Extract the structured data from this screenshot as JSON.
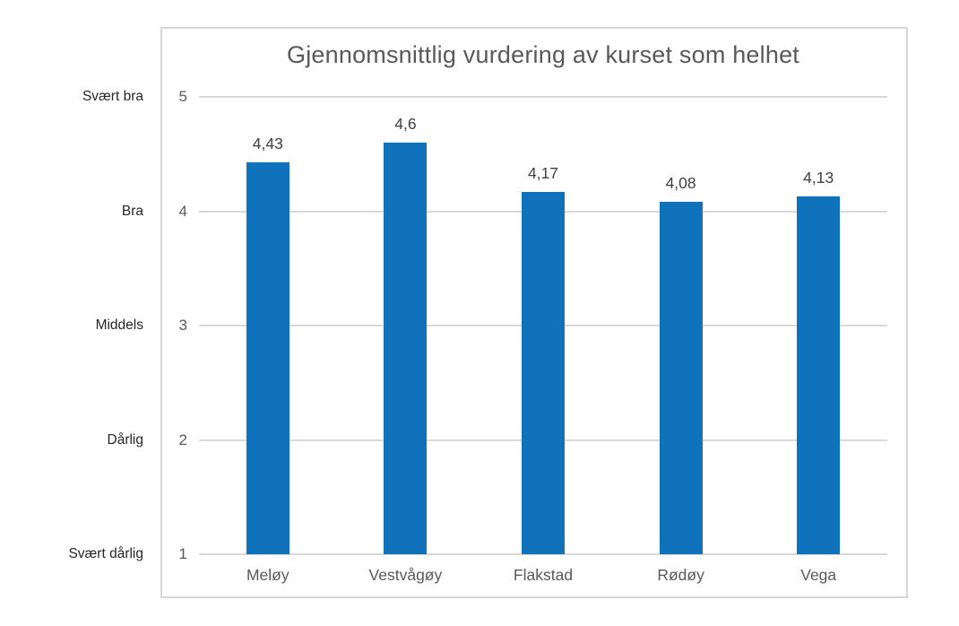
{
  "chart_data": {
    "type": "bar",
    "title": "Gjennomsnittlig vurdering av kurset som helhet",
    "categories": [
      "Meløy",
      "Vestvågøy",
      "Flakstad",
      "Rødøy",
      "Vega"
    ],
    "values": [
      4.43,
      4.6,
      4.17,
      4.08,
      4.13
    ],
    "value_labels": [
      "4,43",
      "4,6",
      "4,17",
      "4,08",
      "4,13"
    ],
    "xlabel": "",
    "ylabel": "",
    "ylim": [
      1,
      5
    ],
    "y_ticks": [
      1,
      2,
      3,
      4,
      5
    ],
    "y_tick_labels": [
      "1",
      "2",
      "3",
      "4",
      "5"
    ],
    "y_axis_qualitative_labels": [
      {
        "value": 5,
        "label": "Svært bra"
      },
      {
        "value": 4,
        "label": "Bra"
      },
      {
        "value": 3,
        "label": "Middels"
      },
      {
        "value": 2,
        "label": "Dårlig"
      },
      {
        "value": 1,
        "label": "Svært dårlig"
      }
    ],
    "grid": true,
    "legend": false,
    "colors": {
      "bar": "#1172bc",
      "gridline": "#d9d9d9",
      "chart_border": "#d6d6d6",
      "title_text": "#595959",
      "axis_text": "#595959",
      "data_label_text": "#404040",
      "qualitative_label_text": "#262626",
      "background": "#ffffff"
    }
  }
}
